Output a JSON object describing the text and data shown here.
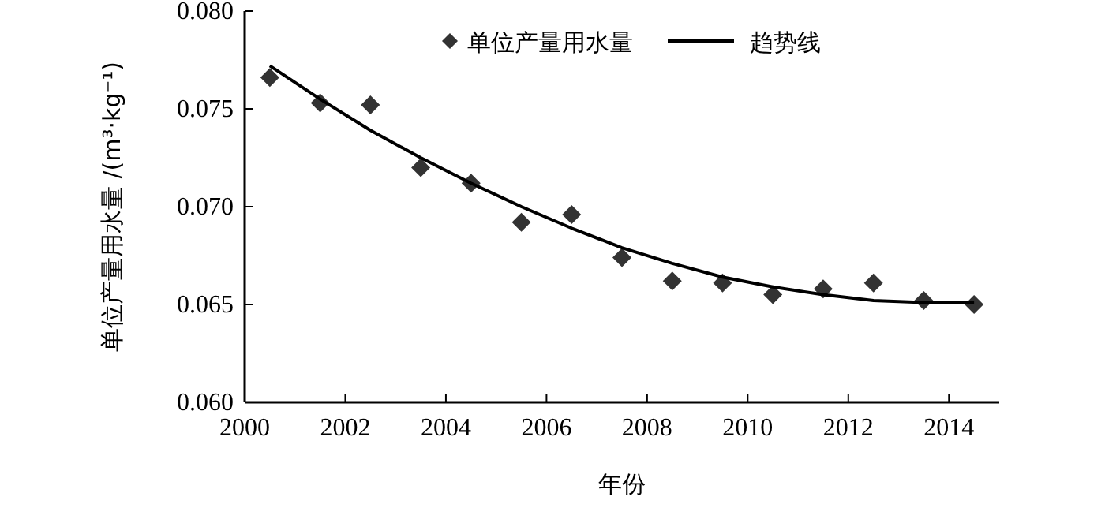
{
  "chart_data": {
    "type": "scatter",
    "xlabel": "年份",
    "ylabel": "单位产量用水量 /(m³·kg⁻¹)",
    "xlim": [
      2000,
      2015
    ],
    "xticks": [
      2000,
      2002,
      2004,
      2006,
      2008,
      2010,
      2012,
      2014
    ],
    "ylim": [
      0.06,
      0.08
    ],
    "yticks": [
      {
        "value": 0.06,
        "label": "0.060"
      },
      {
        "value": 0.065,
        "label": "0.065"
      },
      {
        "value": 0.07,
        "label": "0.070"
      },
      {
        "value": 0.075,
        "label": "0.075"
      },
      {
        "value": 0.08,
        "label": "0.080"
      }
    ],
    "grid": false,
    "legend": "top",
    "x": [
      2000.5,
      2001.5,
      2002.5,
      2003.5,
      2004.5,
      2005.5,
      2006.5,
      2007.5,
      2008.5,
      2009.5,
      2010.5,
      2011.5,
      2012.5,
      2013.5,
      2014.5
    ],
    "series": [
      {
        "name": "单位产量用水量",
        "marker": "diamond",
        "color": "#333333",
        "values": [
          0.0766,
          0.0753,
          0.0752,
          0.072,
          0.0712,
          0.0692,
          0.0696,
          0.0674,
          0.0662,
          0.0661,
          0.0655,
          0.0658,
          0.0661,
          0.0652,
          0.065
        ]
      },
      {
        "name": "趋势线",
        "type": "line",
        "line_style": "solid",
        "color": "#000000",
        "values": [
          0.0772,
          0.0755,
          0.0739,
          0.0725,
          0.0712,
          0.07,
          0.0689,
          0.0679,
          0.0671,
          0.0664,
          0.0659,
          0.0655,
          0.0652,
          0.0651,
          0.0651
        ]
      }
    ]
  }
}
